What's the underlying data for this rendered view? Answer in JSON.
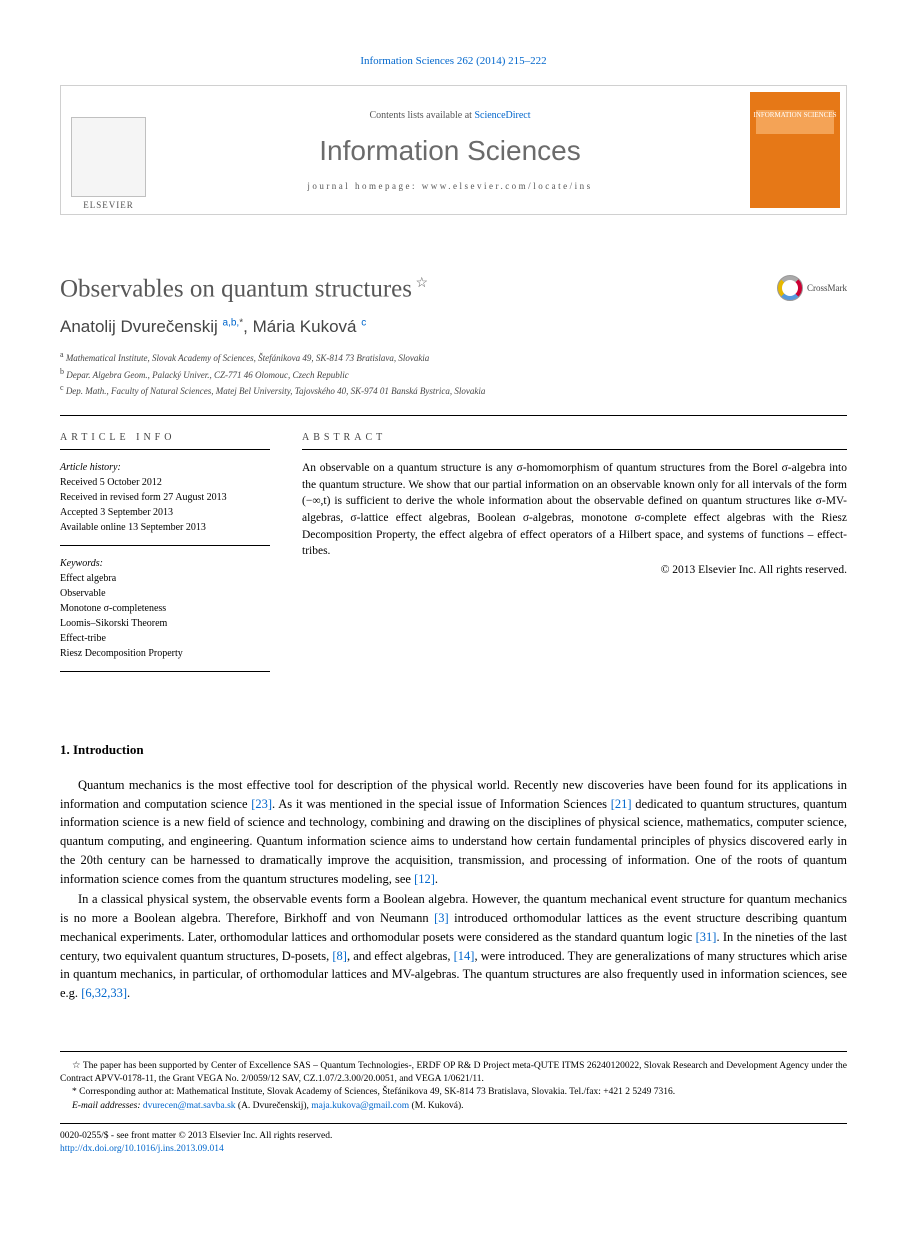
{
  "citation": "Information Sciences 262 (2014) 215–222",
  "banner": {
    "contents_prefix": "Contents lists available at ",
    "contents_link": "ScienceDirect",
    "journal": "Information Sciences",
    "homepage": "journal homepage: www.elsevier.com/locate/ins",
    "elsevier_label": "ELSEVIER",
    "cover_title": "INFORMATION SCIENCES"
  },
  "title": "Observables on quantum structures",
  "crossmark": "CrossMark",
  "authors_html": {
    "a1_name": "Anatolij Dvurečenskij",
    "a1_sup": "a,b,",
    "a2_name": "Mária Kuková",
    "a2_sup": "c"
  },
  "affiliations": {
    "a": "Mathematical Institute, Slovak Academy of Sciences, Štefánikova 49, SK-814 73 Bratislava, Slovakia",
    "b": "Depar. Algebra Geom., Palacký Univer., CZ-771 46 Olomouc, Czech Republic",
    "c": "Dep. Math., Faculty of Natural Sciences, Matej Bel University, Tajovského 40, SK-974 01 Banská Bystrica, Slovakia"
  },
  "info": {
    "head": "ARTICLE INFO",
    "history_label": "Article history:",
    "h1": "Received 5 October 2012",
    "h2": "Received in revised form 27 August 2013",
    "h3": "Accepted 3 September 2013",
    "h4": "Available online 13 September 2013",
    "keywords_label": "Keywords:",
    "k1": "Effect algebra",
    "k2": "Observable",
    "k3": "Monotone σ-completeness",
    "k4": "Loomis–Sikorski Theorem",
    "k5": "Effect-tribe",
    "k6": "Riesz Decomposition Property"
  },
  "abstract": {
    "head": "ABSTRACT",
    "text": "An observable on a quantum structure is any σ-homomorphism of quantum structures from the Borel σ-algebra into the quantum structure. We show that our partial information on an observable known only for all intervals of the form (−∞,t) is sufficient to derive the whole information about the observable defined on quantum structures like σ-MV-algebras, σ-lattice effect algebras, Boolean σ-algebras, monotone σ-complete effect algebras with the Riesz Decomposition Property, the effect algebra of effect operators of a Hilbert space, and systems of functions – effect-tribes.",
    "copyright": "© 2013 Elsevier Inc. All rights reserved."
  },
  "section1": {
    "head": "1. Introduction",
    "p1_a": "Quantum mechanics is the most effective tool for description of the physical world. Recently new discoveries have been found for its applications in information and computation science ",
    "p1_ref1": "[23]",
    "p1_b": ". As it was mentioned in the special issue of Information Sciences ",
    "p1_ref2": "[21]",
    "p1_c": " dedicated to quantum structures, quantum information science is a new field of science and technology, combining and drawing on the disciplines of physical science, mathematics, computer science, quantum computing, and engineering. Quantum information science aims to understand how certain fundamental principles of physics discovered early in the 20th century can be harnessed to dramatically improve the acquisition, transmission, and processing of information. One of the roots of quantum information science comes from the quantum structures modeling, see ",
    "p1_ref3": "[12]",
    "p1_d": ".",
    "p2_a": "In a classical physical system, the observable events form a Boolean algebra. However, the quantum mechanical event structure for quantum mechanics is no more a Boolean algebra. Therefore, Birkhoff and von Neumann ",
    "p2_ref1": "[3]",
    "p2_b": " introduced orthomodular lattices as the event structure describing quantum mechanical experiments. Later, orthomodular lattices and orthomodular posets were considered as the standard quantum logic ",
    "p2_ref2": "[31]",
    "p2_c": ". In the nineties of the last century, two equivalent quantum structures, D-posets, ",
    "p2_ref3": "[8]",
    "p2_d": ", and effect algebras, ",
    "p2_ref4": "[14]",
    "p2_e": ", were introduced. They are generalizations of many structures which arise in quantum mechanics, in particular, of orthomodular lattices and MV-algebras. The quantum structures are also frequently used in information sciences, see e.g. ",
    "p2_ref5": "[6,32,33]",
    "p2_f": "."
  },
  "footnotes": {
    "fn_star": "The paper has been supported by Center of Excellence SAS – Quantum Technologies-, ERDF OP R& D Project meta-QUTE ITMS 26240120022, Slovak Research and Development Agency under the Contract APVV-0178-11, the Grant VEGA No. 2/0059/12 SAV, CZ.1.07/2.3.00/20.0051, and VEGA 1/0621/11.",
    "fn_corr": "Corresponding author at: Mathematical Institute, Slovak Academy of Sciences, Štefánikova 49, SK-814 73 Bratislava, Slovakia. Tel./fax: +421 2 5249 7316.",
    "email_label": "E-mail addresses:",
    "email1": "dvurecen@mat.savba.sk",
    "email1_owner": " (A. Dvurečenskij), ",
    "email2": "maja.kukova@gmail.com",
    "email2_owner": " (M. Kuková)."
  },
  "footer": {
    "line1": "0020-0255/$ - see front matter © 2013 Elsevier Inc. All rights reserved.",
    "doi": "http://dx.doi.org/10.1016/j.ins.2013.09.014"
  }
}
